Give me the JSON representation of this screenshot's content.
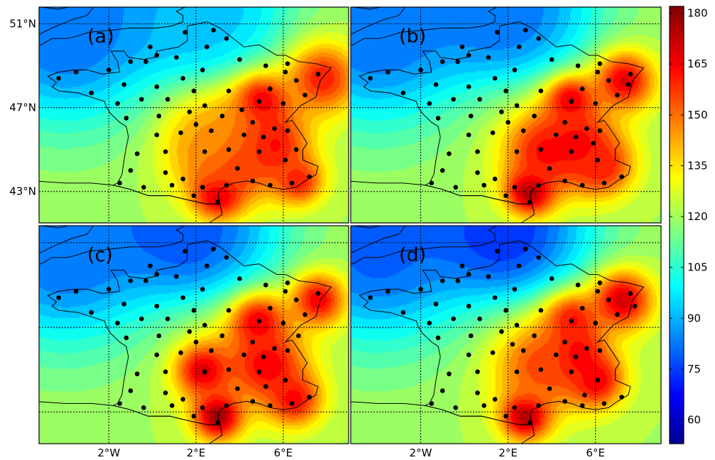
{
  "figure": {
    "panels": [
      {
        "label": "(a)"
      },
      {
        "label": "(b)"
      },
      {
        "label": "(c)"
      },
      {
        "label": "(d)"
      }
    ],
    "lat_ticks": [
      "51°N",
      "47°N",
      "43°N"
    ],
    "lon_ticks": [
      "2°W",
      "2°E",
      "6°E"
    ],
    "colorbar": {
      "ticks": [
        "180",
        "165",
        "150",
        "135",
        "120",
        "105",
        "90",
        "75",
        "60"
      ],
      "range": [
        53,
        182
      ]
    }
  },
  "chart_data": {
    "type": "heatmap",
    "map_extent": {
      "lon": [
        -5.2,
        9.0
      ],
      "lat": [
        41.5,
        51.8
      ]
    },
    "graticule": {
      "lon": [
        -2,
        2,
        6
      ],
      "lat": [
        43,
        47,
        51
      ]
    },
    "colorscale": "jet",
    "value_range": [
      53,
      182
    ],
    "hotspots": {
      "a": [
        [
          4.9,
          47.3,
          178,
          0.9
        ],
        [
          3.0,
          42.9,
          182,
          0.8
        ],
        [
          7.8,
          48.4,
          165,
          1.2
        ],
        [
          5.4,
          45.2,
          170,
          1.2
        ],
        [
          3.5,
          44.6,
          165,
          1.4
        ],
        [
          6.7,
          43.5,
          165,
          0.8
        ],
        [
          2.5,
          45.7,
          150,
          1.5
        ],
        [
          -4.0,
          50.3,
          80,
          3.0
        ],
        [
          2.0,
          51.2,
          92,
          1.8
        ]
      ],
      "b": [
        [
          4.8,
          47.4,
          178,
          0.8
        ],
        [
          3.0,
          43.0,
          182,
          0.8
        ],
        [
          7.3,
          48.3,
          172,
          1.0
        ],
        [
          5.2,
          45.2,
          170,
          1.2
        ],
        [
          3.7,
          45.0,
          168,
          1.2
        ],
        [
          6.3,
          44.2,
          165,
          1.0
        ],
        [
          -4.0,
          50.3,
          80,
          3.0
        ],
        [
          1.8,
          51.4,
          80,
          2.0
        ]
      ],
      "c": [
        [
          4.8,
          47.3,
          175,
          0.9
        ],
        [
          3.0,
          42.8,
          182,
          0.8
        ],
        [
          7.6,
          48.3,
          170,
          0.9
        ],
        [
          5.3,
          45.2,
          170,
          1.2
        ],
        [
          2.3,
          45.0,
          175,
          0.9
        ],
        [
          6.5,
          43.6,
          168,
          0.9
        ],
        [
          -4.0,
          50.3,
          80,
          3.0
        ],
        [
          1.6,
          51.5,
          75,
          2.0
        ]
      ],
      "d": [
        [
          4.8,
          47.4,
          172,
          0.9
        ],
        [
          2.8,
          42.8,
          182,
          0.8
        ],
        [
          7.2,
          48.3,
          175,
          1.0
        ],
        [
          5.0,
          45.6,
          178,
          0.9
        ],
        [
          6.0,
          44.5,
          172,
          0.9
        ],
        [
          3.5,
          45.3,
          160,
          1.4
        ],
        [
          -4.0,
          50.4,
          78,
          3.0
        ],
        [
          1.8,
          51.5,
          70,
          2.0
        ]
      ]
    },
    "stations": {
      "common": [
        [
          -4.3,
          48.4
        ],
        [
          -3.5,
          48.7
        ],
        [
          -2.0,
          48.8
        ],
        [
          -1.0,
          49.2
        ],
        [
          -0.3,
          49.2
        ],
        [
          0.2,
          49.5
        ],
        [
          1.1,
          49.4
        ],
        [
          2.5,
          49.9
        ],
        [
          1.5,
          50.6
        ],
        [
          2.8,
          50.7
        ],
        [
          3.4,
          50.3
        ],
        [
          4.0,
          49.3
        ],
        [
          5.2,
          49.0
        ],
        [
          6.2,
          49.1
        ],
        [
          7.6,
          48.6
        ],
        [
          6.6,
          48.3
        ],
        [
          5.4,
          47.9
        ],
        [
          6.1,
          48.7
        ],
        [
          2.3,
          48.8
        ],
        [
          1.4,
          48.4
        ],
        [
          0.2,
          48.0
        ],
        [
          -1.3,
          48.1
        ],
        [
          -2.8,
          47.7
        ],
        [
          -1.6,
          47.2
        ],
        [
          -0.5,
          47.4
        ],
        [
          0.7,
          47.4
        ],
        [
          1.9,
          47.8
        ],
        [
          2.4,
          47.1
        ],
        [
          3.5,
          47.8
        ],
        [
          4.9,
          47.3
        ],
        [
          6.0,
          47.2
        ],
        [
          7.0,
          47.6
        ],
        [
          -1.2,
          46.5
        ],
        [
          0.3,
          46.6
        ],
        [
          1.7,
          46.8
        ],
        [
          3.2,
          46.6
        ],
        [
          4.6,
          46.3
        ],
        [
          5.6,
          46.0
        ],
        [
          6.2,
          45.9
        ],
        [
          0.2,
          45.7
        ],
        [
          1.3,
          45.8
        ],
        [
          2.7,
          45.9
        ],
        [
          4.2,
          45.7
        ],
        [
          5.1,
          45.6
        ],
        [
          -0.7,
          44.8
        ],
        [
          0.6,
          44.9
        ],
        [
          2.4,
          44.9
        ],
        [
          3.5,
          45.0
        ],
        [
          4.9,
          44.9
        ],
        [
          6.1,
          44.5
        ],
        [
          -1.0,
          44.0
        ],
        [
          0.6,
          43.9
        ],
        [
          1.4,
          43.6
        ],
        [
          2.3,
          43.2
        ],
        [
          3.4,
          43.3
        ],
        [
          4.6,
          43.5
        ],
        [
          5.4,
          43.3
        ],
        [
          6.4,
          43.4
        ],
        [
          7.2,
          43.7
        ],
        [
          -1.5,
          43.4
        ],
        [
          -0.4,
          43.2
        ],
        [
          0.9,
          43.3
        ],
        [
          1.9,
          42.8
        ],
        [
          3.0,
          42.5
        ],
        [
          3.9,
          44.1
        ],
        [
          -0.1,
          49.9
        ]
      ],
      "extra": {
        "a": [
          [
            2.0,
            46.2
          ],
          [
            6.6,
            45.0
          ],
          [
            4.1,
            46.9
          ]
        ],
        "b": [
          [
            2.0,
            46.3
          ],
          [
            5.9,
            45.3
          ],
          [
            7.5,
            48.1
          ]
        ],
        "c": [
          [
            2.0,
            46.3
          ],
          [
            5.2,
            44.2
          ],
          [
            6.7,
            46.6
          ]
        ],
        "d": [
          [
            2.2,
            46.2
          ],
          [
            5.5,
            43.8
          ],
          [
            7.8,
            48.0
          ]
        ]
      }
    }
  }
}
